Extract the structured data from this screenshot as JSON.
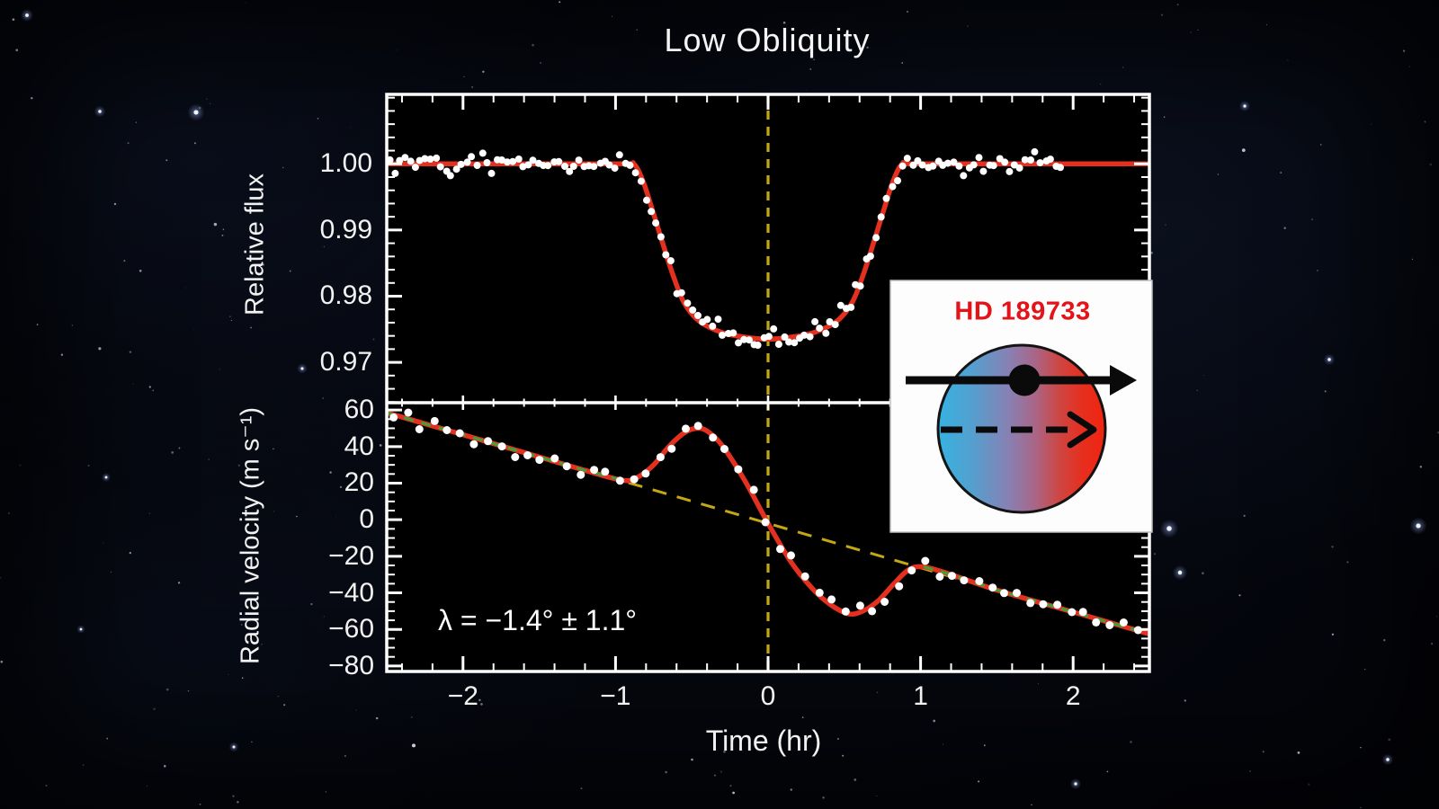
{
  "title": "Low Obliquity",
  "x_axis": {
    "label": "Time (hr)",
    "tick_labels": [
      "−2",
      "−1",
      "0",
      "1",
      "2"
    ],
    "tick_values": [
      -2,
      -1,
      0,
      1,
      2
    ]
  },
  "panels": {
    "flux": {
      "ylabel": "Relative flux",
      "tick_labels": [
        "1.00",
        "0.99",
        "0.98",
        "0.97"
      ],
      "tick_values": [
        1.0,
        0.99,
        0.98,
        0.97
      ]
    },
    "rv": {
      "ylabel": "Radial velocity (m s⁻¹)",
      "tick_labels": [
        "60",
        "40",
        "20",
        "0",
        "−20",
        "−40",
        "−60",
        "−80"
      ],
      "tick_values": [
        60,
        40,
        20,
        0,
        -20,
        -40,
        -60,
        -80
      ],
      "annotation": "λ = −1.4° ± 1.1°"
    }
  },
  "inset": {
    "title": "HD 189733",
    "title_color": "#e31319",
    "box_color": "#fdfdfd",
    "star_gradient": [
      "#35b3e2",
      "#53a0cf",
      "#8781b4",
      "#a96687",
      "#cc4744",
      "#e62f1f",
      "#f12410"
    ],
    "arrow_color": "#0a0a0a"
  },
  "colors": {
    "model_red": "#e4301f",
    "data_white": "#ffffff",
    "trend_yellow": "#c3a714",
    "overlay_green": "#3da23a",
    "axis_white": "#ffffff",
    "panel_black": "#000000"
  },
  "chart_data": [
    {
      "type": "scatter",
      "name": "transit-light-curve",
      "title": "Low Obliquity",
      "xlabel": "Time (hr)",
      "ylabel": "Relative flux",
      "xlim": [
        -2.5,
        2.5
      ],
      "ylim": [
        0.9639,
        1.0105
      ],
      "x_major_ticks": [
        -2,
        -1,
        0,
        1,
        2
      ],
      "x_minor_step": 0.2,
      "y_major_ticks": [
        1.0,
        0.99,
        0.98,
        0.97
      ],
      "y_minor_step": 0.002,
      "model": {
        "x": [
          -2.5,
          -1.5,
          -0.95,
          -0.88,
          -0.82,
          -0.75,
          -0.68,
          -0.62,
          -0.55,
          -0.45,
          -0.3,
          -0.15,
          0.0,
          0.15,
          0.3,
          0.45,
          0.55,
          0.62,
          0.68,
          0.75,
          0.82,
          0.88,
          0.95,
          1.5,
          2.5
        ],
        "y": [
          1.0,
          1.0,
          1.0,
          1.0,
          0.9974,
          0.9924,
          0.9872,
          0.983,
          0.979,
          0.9762,
          0.9745,
          0.9738,
          0.9735,
          0.9738,
          0.9745,
          0.9762,
          0.979,
          0.983,
          0.9872,
          0.9924,
          0.9974,
          1.0,
          1.0,
          1.0,
          1.0
        ]
      },
      "transit": {
        "depth_min_flux": 0.9735,
        "ingress_start_hr": -0.88,
        "egress_end_hr": 0.88,
        "center_hr": 0
      },
      "scatter": {
        "t_start": -2.48,
        "t_end": 1.92,
        "n": 132,
        "noise_sigma": 0.00078,
        "marker_radius": 4
      },
      "time_zero_line": {
        "x": 0,
        "style": "dashed"
      }
    },
    {
      "type": "scatter",
      "name": "rossiter-mclaughlin-radial-velocity",
      "xlabel": "Time (hr)",
      "ylabel": "Radial velocity (m s⁻¹)",
      "xlim": [
        -2.5,
        2.5
      ],
      "ylim": [
        -83,
        64
      ],
      "x_major_ticks": [
        -2,
        -1,
        0,
        1,
        2
      ],
      "x_minor_step": 0.2,
      "y_major_ticks": [
        60,
        40,
        20,
        0,
        -20,
        -40,
        -60,
        -80
      ],
      "y_minor_step": 5,
      "model": {
        "x": [
          -2.5,
          -2.0,
          -1.5,
          -1.2,
          -0.95,
          -0.85,
          -0.75,
          -0.65,
          -0.55,
          -0.47,
          -0.4,
          -0.3,
          -0.15,
          0.0,
          0.15,
          0.3,
          0.42,
          0.53,
          0.62,
          0.72,
          0.82,
          0.92,
          1.02,
          1.2,
          1.5,
          2.0,
          2.5
        ],
        "y": [
          58.5,
          46.5,
          34.3,
          27.0,
          21.5,
          23.5,
          30.0,
          40.0,
          47.5,
          50.0,
          48.5,
          40.5,
          21.0,
          -2.0,
          -23.0,
          -38.5,
          -47.0,
          -51.5,
          -50.0,
          -44.5,
          -35.5,
          -27.5,
          -25.8,
          -30.0,
          -38.5,
          -50.5,
          -62.5
        ]
      },
      "trend": {
        "slope_m_s_per_hr": -24.3,
        "intercept_m_s": -2.0,
        "style": "dashed"
      },
      "model_overlay_dashed_segments": [
        [
          -2.5,
          -0.95
        ],
        [
          1.02,
          2.5
        ]
      ],
      "rm_anomaly": {
        "start_hr": -0.92,
        "peak_hr": -0.47,
        "peak_rv": 50,
        "trough_hr": 0.53,
        "trough_rv": -52,
        "end_hr": 1.0
      },
      "scatter": {
        "t_start": -2.45,
        "t_end": 2.42,
        "n": 57,
        "noise_sigma": 2.3,
        "marker_radius": 4.5
      },
      "annotation": "λ = −1.4° ± 1.1°"
    }
  ]
}
